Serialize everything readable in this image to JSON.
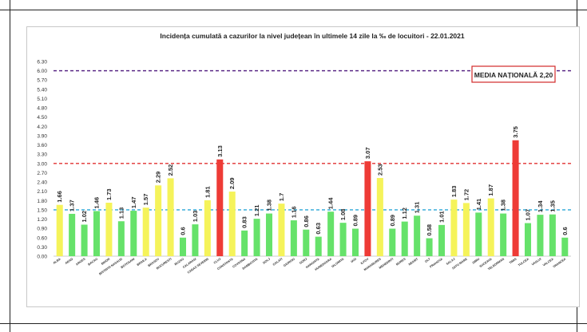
{
  "chart_data": {
    "type": "bar",
    "title": "Incidența cumulată a cazurilor la nivel județean în ultimele 14 zile la ‰ de locuitori - 22.01.2021",
    "legend_box": "MEDIA NAȚIONALĂ 2,20",
    "ylim": [
      0,
      6.3
    ],
    "ytick_step": 0.3,
    "ytick_labels": [
      "0.00",
      "0.30",
      "0.60",
      "0.90",
      "1.20",
      "1.50",
      "1.80",
      "2.10",
      "2.40",
      "2.70",
      "3.00",
      "3.30",
      "3.60",
      "3.90",
      "4.20",
      "4.50",
      "4.80",
      "5.10",
      "5.40",
      "5.70",
      "6.00",
      "6.30"
    ],
    "reference_lines": [
      {
        "value": 6.0,
        "color": "#5b2a86",
        "style": "dashed"
      },
      {
        "value": 3.0,
        "color": "#e03030",
        "style": "dashed"
      },
      {
        "value": 1.5,
        "color": "#2aa7d8",
        "style": "dashed"
      }
    ],
    "colors": {
      "green": "#66e26a",
      "yellow": "#f5f35a",
      "red": "#ee3b36"
    },
    "categories": [
      "ALBA",
      "ARAD",
      "ARGES",
      "BACAU",
      "BIHOR",
      "BISTRITA NASAUD",
      "BOTOSANI",
      "BRAILA",
      "BRASOV",
      "BUCURESTI",
      "BUZAU",
      "CALARASI",
      "CARAS SEVERIN",
      "CLUJ",
      "CONSTANTA",
      "COVASNA",
      "DAMBOVITA",
      "DOLJ",
      "GALATI",
      "GIURGIU",
      "GORJ",
      "HARGHITA",
      "HUNEDOARA",
      "IALOMITA",
      "IASI",
      "ILFOV",
      "MARAMURES",
      "MEHEDINTI",
      "MURES",
      "NEAMT",
      "OLT",
      "PRAHOVA",
      "SALAJ",
      "SATU MARE",
      "SIBIU",
      "SUCEAVA",
      "TELEORMAN",
      "TIMIS",
      "TULCEA",
      "VASLUI",
      "VALCEA",
      "VRANCEA"
    ],
    "values": [
      1.66,
      1.37,
      1.02,
      1.46,
      1.73,
      1.13,
      1.47,
      1.57,
      2.29,
      2.52,
      0.6,
      1.03,
      1.81,
      3.13,
      2.09,
      0.83,
      1.21,
      1.38,
      1.7,
      1.16,
      0.86,
      0.63,
      1.44,
      1.08,
      0.89,
      3.07,
      2.53,
      0.89,
      1.12,
      1.31,
      0.58,
      1.01,
      1.83,
      1.72,
      1.41,
      1.87,
      1.38,
      3.75,
      1.07,
      1.34,
      1.35,
      0.6
    ],
    "value_labels": [
      "1.66",
      "1.37",
      "1.02",
      "1.46",
      "1.73",
      "1.13",
      "1.47",
      "1.57",
      "2.29",
      "2.52",
      "0.6",
      "1.03",
      "1.81",
      "3.13",
      "2.09",
      "0.83",
      "1.21",
      "1.38",
      "1.7",
      "1.16",
      "0.86",
      "0.63",
      "1.44",
      "1.08",
      "0.89",
      "3.07",
      "2.53",
      "0.89",
      "1.12",
      "1.31",
      "0.58",
      "1.01",
      "1.83",
      "1.72",
      "1.41",
      "1.87",
      "1.38",
      "3.75",
      "1.07",
      "1.34",
      "1.35",
      "0.6"
    ],
    "bar_colors": [
      "yellow",
      "green",
      "green",
      "green",
      "yellow",
      "green",
      "green",
      "yellow",
      "yellow",
      "yellow",
      "green",
      "green",
      "yellow",
      "red",
      "yellow",
      "green",
      "green",
      "green",
      "yellow",
      "green",
      "green",
      "green",
      "green",
      "green",
      "green",
      "red",
      "yellow",
      "green",
      "green",
      "green",
      "green",
      "green",
      "yellow",
      "yellow",
      "green",
      "yellow",
      "green",
      "red",
      "green",
      "green",
      "green",
      "green"
    ]
  }
}
